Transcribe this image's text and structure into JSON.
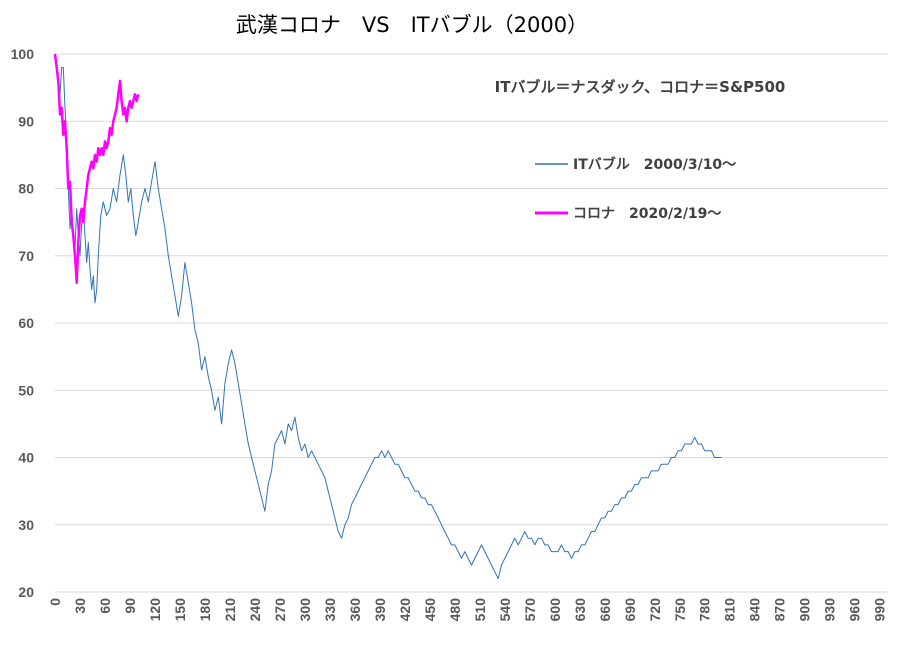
{
  "chart_data": {
    "type": "line",
    "title": "武漢コロナ　VS　ITバブル（2000）",
    "annotation": "ITバブル＝ナスダック、コロナ＝S&P500",
    "xlabel": "",
    "ylabel": "",
    "xlim": [
      0,
      1000
    ],
    "ylim": [
      20,
      100
    ],
    "y_ticks": [
      "20",
      "30",
      "40",
      "50",
      "60",
      "70",
      "80",
      "90",
      "100"
    ],
    "x_ticks": [
      "0",
      "30",
      "60",
      "90",
      "120",
      "150",
      "180",
      "210",
      "240",
      "270",
      "300",
      "330",
      "360",
      "390",
      "420",
      "450",
      "480",
      "510",
      "540",
      "570",
      "600",
      "630",
      "660",
      "690",
      "720",
      "750",
      "780",
      "810",
      "840",
      "870",
      "900",
      "930",
      "960",
      "990"
    ],
    "grid": "horizontal",
    "legend_position": "right-middle",
    "series": [
      {
        "name": "ITバブル　2000/3/10～",
        "color": "#2e75b6",
        "points": [
          [
            0,
            100
          ],
          [
            3,
            96
          ],
          [
            6,
            94
          ],
          [
            8,
            98
          ],
          [
            10,
            98
          ],
          [
            12,
            92
          ],
          [
            14,
            87
          ],
          [
            16,
            80
          ],
          [
            18,
            74
          ],
          [
            20,
            77
          ],
          [
            22,
            73
          ],
          [
            24,
            71
          ],
          [
            26,
            77
          ],
          [
            28,
            73
          ],
          [
            30,
            70
          ],
          [
            32,
            75
          ],
          [
            34,
            77
          ],
          [
            36,
            73
          ],
          [
            38,
            69
          ],
          [
            40,
            72
          ],
          [
            42,
            68
          ],
          [
            44,
            65
          ],
          [
            46,
            67
          ],
          [
            48,
            63
          ],
          [
            50,
            65
          ],
          [
            52,
            70
          ],
          [
            55,
            76
          ],
          [
            58,
            78
          ],
          [
            62,
            76
          ],
          [
            66,
            77
          ],
          [
            70,
            80
          ],
          [
            74,
            78
          ],
          [
            78,
            82
          ],
          [
            82,
            85
          ],
          [
            85,
            82
          ],
          [
            88,
            78
          ],
          [
            91,
            80
          ],
          [
            94,
            76
          ],
          [
            97,
            73
          ],
          [
            100,
            75
          ],
          [
            104,
            78
          ],
          [
            108,
            80
          ],
          [
            112,
            78
          ],
          [
            116,
            81
          ],
          [
            120,
            84
          ],
          [
            124,
            80
          ],
          [
            128,
            77
          ],
          [
            132,
            74
          ],
          [
            136,
            70
          ],
          [
            140,
            67
          ],
          [
            144,
            64
          ],
          [
            148,
            61
          ],
          [
            152,
            64
          ],
          [
            156,
            69
          ],
          [
            160,
            66
          ],
          [
            164,
            63
          ],
          [
            168,
            59
          ],
          [
            172,
            57
          ],
          [
            176,
            53
          ],
          [
            180,
            55
          ],
          [
            184,
            52
          ],
          [
            188,
            50
          ],
          [
            192,
            47
          ],
          [
            196,
            49
          ],
          [
            200,
            45
          ],
          [
            204,
            51
          ],
          [
            208,
            54
          ],
          [
            212,
            56
          ],
          [
            216,
            54
          ],
          [
            220,
            51
          ],
          [
            224,
            48
          ],
          [
            228,
            45
          ],
          [
            232,
            42
          ],
          [
            236,
            40
          ],
          [
            240,
            38
          ],
          [
            244,
            36
          ],
          [
            248,
            34
          ],
          [
            252,
            32
          ],
          [
            256,
            36
          ],
          [
            260,
            38
          ],
          [
            264,
            42
          ],
          [
            268,
            43
          ],
          [
            272,
            44
          ],
          [
            276,
            42
          ],
          [
            280,
            45
          ],
          [
            284,
            44
          ],
          [
            288,
            46
          ],
          [
            292,
            43
          ],
          [
            296,
            41
          ],
          [
            300,
            42
          ],
          [
            304,
            40
          ],
          [
            308,
            41
          ],
          [
            312,
            40
          ],
          [
            316,
            39
          ],
          [
            320,
            38
          ],
          [
            324,
            37
          ],
          [
            328,
            35
          ],
          [
            332,
            33
          ],
          [
            336,
            31
          ],
          [
            340,
            29
          ],
          [
            344,
            28
          ],
          [
            348,
            30
          ],
          [
            352,
            31
          ],
          [
            356,
            33
          ],
          [
            360,
            34
          ],
          [
            364,
            35
          ],
          [
            368,
            36
          ],
          [
            372,
            37
          ],
          [
            376,
            38
          ],
          [
            380,
            39
          ],
          [
            384,
            40
          ],
          [
            388,
            40
          ],
          [
            392,
            41
          ],
          [
            396,
            40
          ],
          [
            400,
            41
          ],
          [
            404,
            40
          ],
          [
            408,
            39
          ],
          [
            412,
            39
          ],
          [
            416,
            38
          ],
          [
            420,
            37
          ],
          [
            424,
            37
          ],
          [
            428,
            36
          ],
          [
            432,
            35
          ],
          [
            436,
            35
          ],
          [
            440,
            34
          ],
          [
            444,
            34
          ],
          [
            448,
            33
          ],
          [
            452,
            33
          ],
          [
            456,
            32
          ],
          [
            460,
            31
          ],
          [
            464,
            30
          ],
          [
            468,
            29
          ],
          [
            472,
            28
          ],
          [
            476,
            27
          ],
          [
            480,
            27
          ],
          [
            484,
            26
          ],
          [
            488,
            25
          ],
          [
            492,
            26
          ],
          [
            496,
            25
          ],
          [
            500,
            24
          ],
          [
            504,
            25
          ],
          [
            508,
            26
          ],
          [
            512,
            27
          ],
          [
            516,
            26
          ],
          [
            520,
            25
          ],
          [
            524,
            24
          ],
          [
            528,
            23
          ],
          [
            532,
            22
          ],
          [
            536,
            24
          ],
          [
            540,
            25
          ],
          [
            544,
            26
          ],
          [
            548,
            27
          ],
          [
            552,
            28
          ],
          [
            556,
            27
          ],
          [
            560,
            28
          ],
          [
            564,
            29
          ],
          [
            568,
            28
          ],
          [
            572,
            28
          ],
          [
            576,
            27
          ],
          [
            580,
            28
          ],
          [
            584,
            28
          ],
          [
            588,
            27
          ],
          [
            592,
            27
          ],
          [
            596,
            26
          ],
          [
            600,
            26
          ],
          [
            604,
            26
          ],
          [
            608,
            27
          ],
          [
            612,
            26
          ],
          [
            616,
            26
          ],
          [
            620,
            25
          ],
          [
            624,
            26
          ],
          [
            628,
            26
          ],
          [
            632,
            27
          ],
          [
            636,
            27
          ],
          [
            640,
            28
          ],
          [
            644,
            29
          ],
          [
            648,
            29
          ],
          [
            652,
            30
          ],
          [
            656,
            31
          ],
          [
            660,
            31
          ],
          [
            664,
            32
          ],
          [
            668,
            32
          ],
          [
            672,
            33
          ],
          [
            676,
            33
          ],
          [
            680,
            34
          ],
          [
            684,
            34
          ],
          [
            688,
            35
          ],
          [
            692,
            35
          ],
          [
            696,
            36
          ],
          [
            700,
            36
          ],
          [
            704,
            37
          ],
          [
            708,
            37
          ],
          [
            712,
            37
          ],
          [
            716,
            38
          ],
          [
            720,
            38
          ],
          [
            724,
            38
          ],
          [
            728,
            39
          ],
          [
            732,
            39
          ],
          [
            736,
            39
          ],
          [
            740,
            40
          ],
          [
            744,
            40
          ],
          [
            748,
            41
          ],
          [
            752,
            41
          ],
          [
            756,
            42
          ],
          [
            760,
            42
          ],
          [
            764,
            42
          ],
          [
            768,
            43
          ],
          [
            772,
            42
          ],
          [
            776,
            42
          ],
          [
            780,
            41
          ],
          [
            784,
            41
          ],
          [
            788,
            41
          ],
          [
            792,
            40
          ],
          [
            796,
            40
          ],
          [
            800,
            40
          ]
        ]
      },
      {
        "name": "コロナ　2020/2/19～",
        "color": "#ff00ff",
        "points": [
          [
            0,
            100
          ],
          [
            2,
            98
          ],
          [
            4,
            96
          ],
          [
            6,
            91
          ],
          [
            8,
            92
          ],
          [
            10,
            88
          ],
          [
            12,
            90
          ],
          [
            14,
            86
          ],
          [
            16,
            80
          ],
          [
            18,
            81
          ],
          [
            20,
            75
          ],
          [
            22,
            73
          ],
          [
            24,
            70
          ],
          [
            26,
            66
          ],
          [
            28,
            72
          ],
          [
            30,
            76
          ],
          [
            32,
            77
          ],
          [
            34,
            75
          ],
          [
            36,
            78
          ],
          [
            38,
            80
          ],
          [
            40,
            82
          ],
          [
            42,
            83
          ],
          [
            44,
            84
          ],
          [
            46,
            83
          ],
          [
            48,
            85
          ],
          [
            50,
            84
          ],
          [
            52,
            86
          ],
          [
            54,
            85
          ],
          [
            56,
            86
          ],
          [
            58,
            85
          ],
          [
            60,
            87
          ],
          [
            62,
            86
          ],
          [
            64,
            87
          ],
          [
            66,
            89
          ],
          [
            68,
            88
          ],
          [
            70,
            90
          ],
          [
            72,
            91
          ],
          [
            74,
            92
          ],
          [
            76,
            94
          ],
          [
            78,
            96
          ],
          [
            80,
            93
          ],
          [
            82,
            91
          ],
          [
            84,
            92
          ],
          [
            86,
            90
          ],
          [
            88,
            92
          ],
          [
            90,
            93
          ],
          [
            92,
            92
          ],
          [
            94,
            93
          ],
          [
            96,
            94
          ],
          [
            98,
            93
          ],
          [
            100,
            94
          ]
        ]
      }
    ]
  }
}
